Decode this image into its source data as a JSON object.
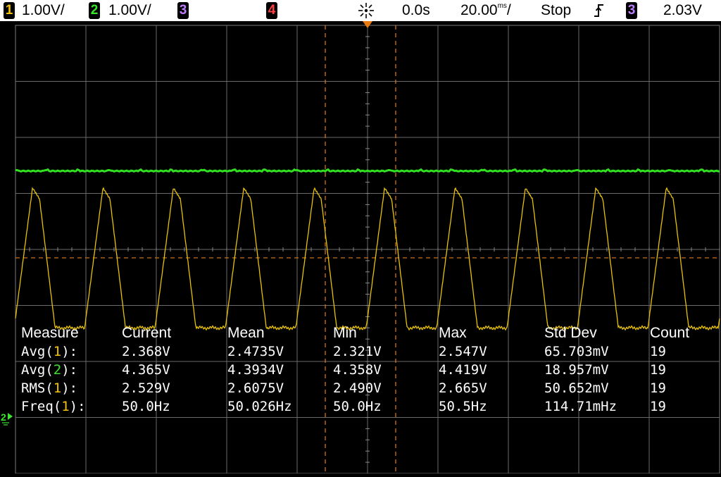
{
  "status_bar": {
    "ch1": {
      "number": "1",
      "scale": "1.00V/",
      "color": "#f6c400"
    },
    "ch2": {
      "number": "2",
      "scale": "1.00V/",
      "color": "#3ae62c"
    },
    "ch3": {
      "number": "3",
      "color": "#c07cff"
    },
    "ch4": {
      "number": "4",
      "color": "#ff4040"
    },
    "acquire_icon": "sparkle-icon",
    "time_offset": "0.0s",
    "time_base": "20.00",
    "time_unit_glyph": "ms",
    "time_suffix": "/",
    "run_state": "Stop",
    "trigger_slope_icon": "rising-edge-icon",
    "trigger_channel": "3",
    "trigger_level": "2.03V"
  },
  "display": {
    "ground_marker_channel": "2",
    "divisions": {
      "horizontal": 10,
      "vertical": 8
    }
  },
  "chart_data": {
    "type": "line",
    "title": "",
    "xlabel": "",
    "ylabel": "",
    "xlim": [
      -100,
      100
    ],
    "x_unit": "ms",
    "ylim_divisions": [
      -4,
      4
    ],
    "grid": true,
    "series": [
      {
        "channel": "1",
        "color": "#e8c20a",
        "shape": "periodic triangle pulses with flat low baseline",
        "frequency_hz": 50.0,
        "peak_div": 1.1,
        "baseline_div": -1.4
      },
      {
        "channel": "2",
        "color": "#32e022",
        "shape": "flat DC level",
        "level_div": 1.4
      }
    ],
    "cursors": {
      "vertical_div": [
        -0.6,
        0.4
      ],
      "horizontal_div": -0.15
    }
  },
  "measurements": {
    "headers": [
      "Measure",
      "Current",
      "Mean",
      "Min",
      "Max",
      "Std Dev",
      "Count"
    ],
    "rows": [
      {
        "name": "Avg(",
        "channel": "1",
        "channel_color": "#f6c400",
        "close": "):",
        "current": "2.368V",
        "mean": "2.4735V",
        "min": "2.321V",
        "max": "2.547V",
        "std_dev": "65.703mV",
        "count": "19"
      },
      {
        "name": "Avg(",
        "channel": "2",
        "channel_color": "#3ae62c",
        "close": "):",
        "current": "4.365V",
        "mean": "4.3934V",
        "min": "4.358V",
        "max": "4.419V",
        "std_dev": "18.957mV",
        "count": "19"
      },
      {
        "name": "RMS(",
        "channel": "1",
        "channel_color": "#f6c400",
        "close": "):",
        "current": "2.529V",
        "mean": "2.6075V",
        "min": "2.490V",
        "max": "2.665V",
        "std_dev": "50.652mV",
        "count": "19"
      },
      {
        "name": "Freq(",
        "channel": "1",
        "channel_color": "#f6c400",
        "close": "):",
        "current": "50.0Hz",
        "mean": "50.026Hz",
        "min": "50.0Hz",
        "max": "50.5Hz",
        "std_dev": "114.71mHz",
        "count": "19"
      }
    ]
  }
}
